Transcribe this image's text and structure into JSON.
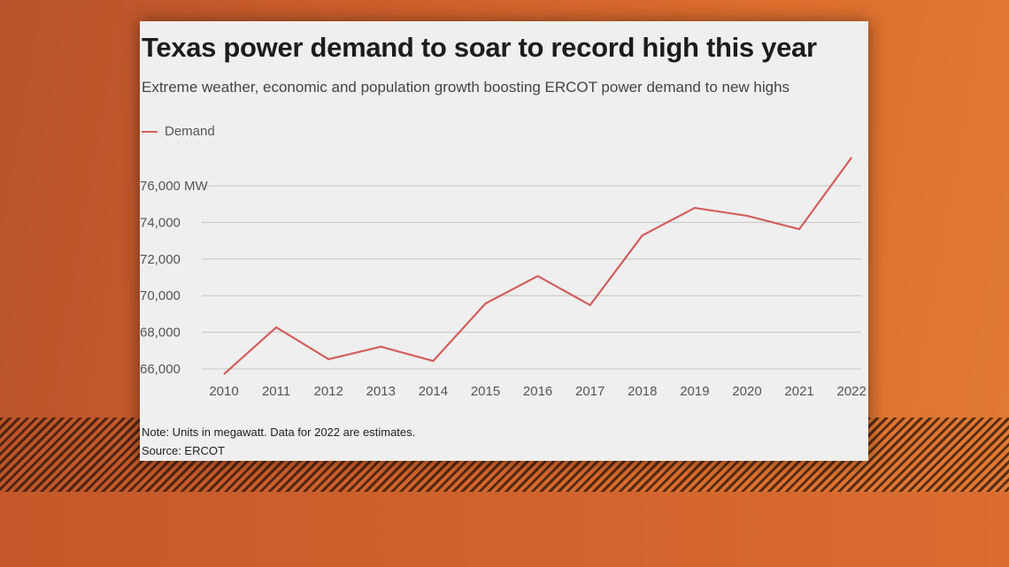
{
  "chart_data": {
    "type": "line",
    "title": "Texas power demand to soar to record high this year",
    "subtitle": "Extreme weather, economic and population growth boosting ERCOT power demand to new highs",
    "x": [
      "2010",
      "2011",
      "2012",
      "2013",
      "2014",
      "2015",
      "2016",
      "2017",
      "2018",
      "2019",
      "2020",
      "2021",
      "2022"
    ],
    "series": [
      {
        "name": "Demand",
        "color": "#d25f5c",
        "values": [
          65710,
          68270,
          66530,
          67210,
          66430,
          69570,
          71070,
          69480,
          73290,
          74790,
          74360,
          73630,
          77550
        ]
      }
    ],
    "yticks": [
      66000,
      68000,
      70000,
      72000,
      74000,
      76000
    ],
    "ytick_labels": [
      "66,000",
      "68,000",
      "70,000",
      "72,000",
      "74,000",
      "76,000 MW"
    ],
    "ylim": [
      65700,
      77600
    ],
    "grid": true,
    "legend": "top-left",
    "note": "Note: Units in megawatt. Data for 2022 are estimates.",
    "source": "Source: ERCOT"
  }
}
